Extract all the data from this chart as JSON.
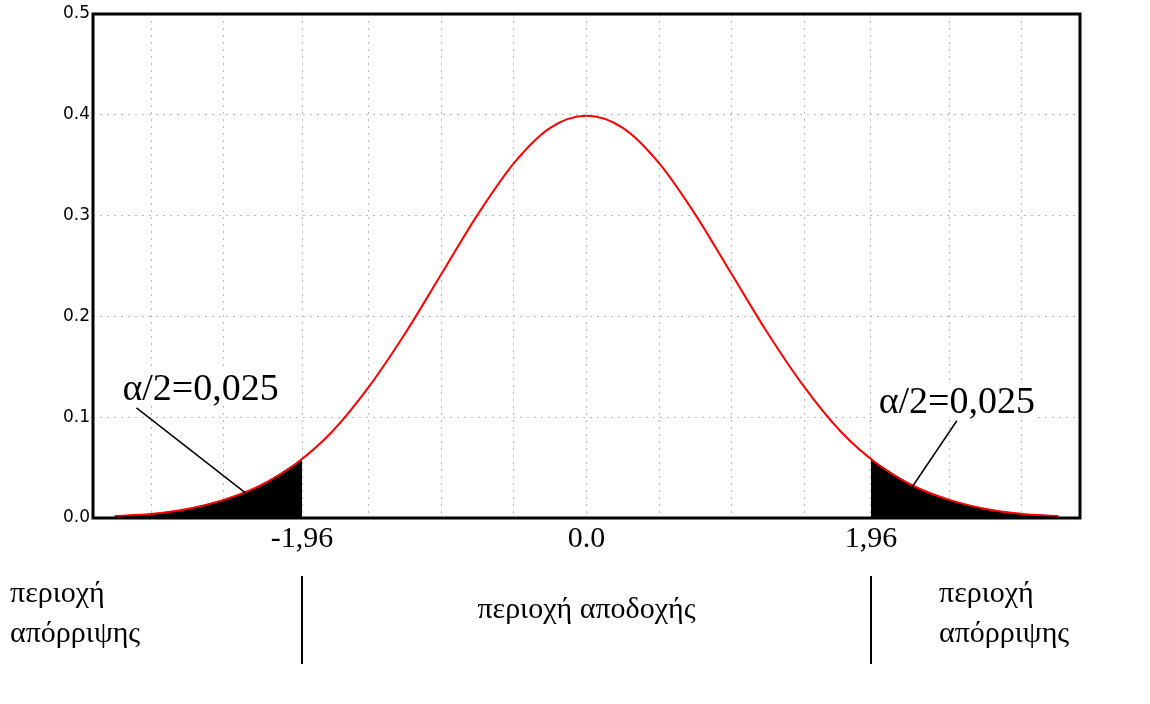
{
  "chart_data": {
    "type": "line",
    "series": [
      {
        "type": "area",
        "color": "#000000",
        "x": [
          -3.25,
          -3,
          -2.75,
          -2.5,
          -2.25,
          -1.96
        ],
        "values": [
          0.002,
          0.004,
          0.009,
          0.018,
          0.032,
          0.058
        ]
      },
      {
        "type": "area",
        "color": "#000000",
        "x": [
          1.96,
          2.25,
          2.5,
          2.75,
          3,
          3.25
        ],
        "values": [
          0.058,
          0.032,
          0.018,
          0.009,
          0.004,
          0.002
        ]
      },
      {
        "type": "line",
        "color": "#ff0000",
        "x": [
          -3.25,
          -3,
          -2.75,
          -2.5,
          -2.25,
          -2,
          -1.75,
          -1.5,
          -1.25,
          -1,
          -0.75,
          -0.5,
          -0.25,
          0,
          0.25,
          0.5,
          0.75,
          1,
          1.25,
          1.5,
          1.75,
          2,
          2.25,
          2.5,
          2.75,
          3,
          3.25
        ],
        "values": [
          0.002,
          0.004,
          0.009,
          0.018,
          0.032,
          0.054,
          0.086,
          0.13,
          0.183,
          0.242,
          0.301,
          0.352,
          0.387,
          0.399,
          0.387,
          0.352,
          0.301,
          0.242,
          0.183,
          0.13,
          0.086,
          0.054,
          0.032,
          0.018,
          0.009,
          0.004,
          0.002
        ]
      }
    ],
    "xlim": [
      -3.4,
      3.4
    ],
    "xticks": [
      {
        "value": -3,
        "label": null
      },
      {
        "value": -2.5,
        "label": null
      },
      {
        "value": -1.96,
        "label": "-1,96"
      },
      {
        "value": -1.5,
        "label": null
      },
      {
        "value": -1,
        "label": null
      },
      {
        "value": -0.5,
        "label": null
      },
      {
        "value": 0,
        "label": "0.0"
      },
      {
        "value": 0.5,
        "label": null
      },
      {
        "value": 1,
        "label": null
      },
      {
        "value": 1.5,
        "label": null
      },
      {
        "value": 1.96,
        "label": "1,96"
      },
      {
        "value": 2.5,
        "label": null
      },
      {
        "value": 3,
        "label": null
      }
    ],
    "ylim": [
      0,
      0.5
    ],
    "yticks": [
      {
        "value": 0,
        "label": "0.0"
      },
      0.1,
      0.2,
      0.3,
      0.4,
      0.5
    ],
    "grid": true,
    "legend": false,
    "marker": "none",
    "annotations": [
      {
        "text": "α/2=0,025",
        "x": -2.35,
        "y": 0.025
      },
      {
        "text": "α/2=0,025",
        "x": 2.24,
        "y": 0.03
      },
      "περιοχή\nαπόρριψης",
      "περιοχή αποδοχής",
      "περιοχή\nαπόρριψης"
    ]
  }
}
